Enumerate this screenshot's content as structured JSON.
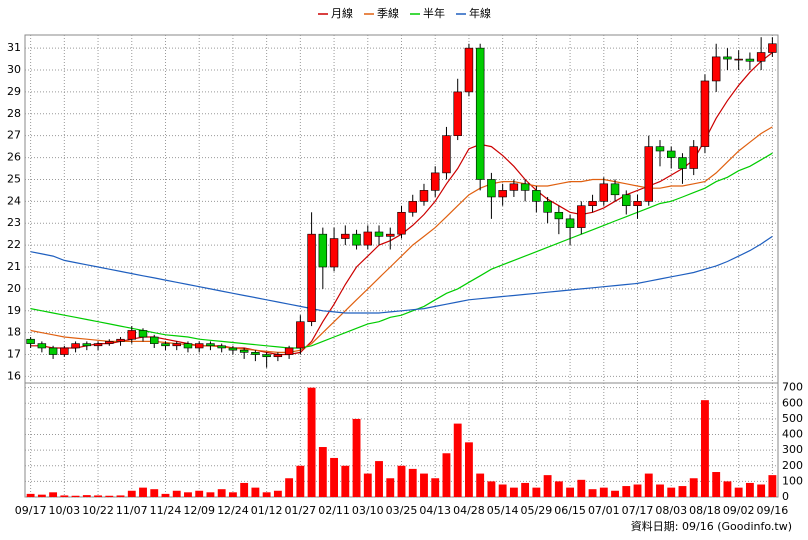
{
  "chart_data": {
    "type": "candlestick",
    "categories": [
      "09/17",
      null,
      null,
      "10/03",
      null,
      null,
      "10/22",
      null,
      null,
      "11/07",
      null,
      null,
      "11/24",
      null,
      null,
      "12/09",
      null,
      null,
      "12/24",
      null,
      null,
      "01/12",
      null,
      null,
      "01/27",
      null,
      null,
      "02/11",
      null,
      null,
      "03/10",
      null,
      null,
      "03/25",
      null,
      null,
      "04/13",
      null,
      null,
      "04/28",
      null,
      null,
      "05/14",
      null,
      null,
      "05/29",
      null,
      null,
      "06/15",
      null,
      null,
      "07/01",
      null,
      null,
      "07/17",
      null,
      null,
      "08/03",
      null,
      null,
      "08/18",
      null,
      null,
      "09/02",
      null,
      null,
      "09/16"
    ],
    "open": [
      17.7,
      17.5,
      17.3,
      17.0,
      17.3,
      17.5,
      17.4,
      17.5,
      17.6,
      17.7,
      18.1,
      17.8,
      17.5,
      17.4,
      17.5,
      17.3,
      17.5,
      17.4,
      17.3,
      17.2,
      17.1,
      17.0,
      16.9,
      17.0,
      17.3,
      18.5,
      22.5,
      21.0,
      22.3,
      22.5,
      22.0,
      22.6,
      22.4,
      22.5,
      23.5,
      24.0,
      24.5,
      25.3,
      27.0,
      29.0,
      31.0,
      25.0,
      24.2,
      24.5,
      24.8,
      24.5,
      24.0,
      23.5,
      23.2,
      22.8,
      23.8,
      24.0,
      24.8,
      24.3,
      23.8,
      24.0,
      26.5,
      26.3,
      26.0,
      25.5,
      26.5,
      29.5,
      30.6,
      30.5,
      30.5,
      30.4,
      30.8
    ],
    "high": [
      17.8,
      17.6,
      17.4,
      17.4,
      17.6,
      17.6,
      17.6,
      17.7,
      17.8,
      18.3,
      18.2,
      17.9,
      17.6,
      17.6,
      17.6,
      17.6,
      17.6,
      17.5,
      17.4,
      17.3,
      17.2,
      17.1,
      17.1,
      17.4,
      18.8,
      23.5,
      22.8,
      22.8,
      22.9,
      22.7,
      22.9,
      22.9,
      22.8,
      23.8,
      24.3,
      24.8,
      25.6,
      27.4,
      29.6,
      31.2,
      31.2,
      25.3,
      24.8,
      25.0,
      25.0,
      24.7,
      24.2,
      23.8,
      23.4,
      24.0,
      24.3,
      25.1,
      25.0,
      24.5,
      24.3,
      27.0,
      26.8,
      26.5,
      26.2,
      26.8,
      29.8,
      31.2,
      31.0,
      30.9,
      30.8,
      31.5,
      31.5
    ],
    "low": [
      17.3,
      17.1,
      16.8,
      16.9,
      17.1,
      17.2,
      17.2,
      17.4,
      17.4,
      17.5,
      17.6,
      17.3,
      17.2,
      17.2,
      17.1,
      17.1,
      17.2,
      17.1,
      17.0,
      16.8,
      16.7,
      16.4,
      16.7,
      16.8,
      17.0,
      18.3,
      20.0,
      20.8,
      22.0,
      21.8,
      21.8,
      22.0,
      21.8,
      22.3,
      23.3,
      23.8,
      24.2,
      25.0,
      26.8,
      28.8,
      24.5,
      23.2,
      23.8,
      24.2,
      24.0,
      23.5,
      23.0,
      22.5,
      22.0,
      22.5,
      23.5,
      23.8,
      24.0,
      23.4,
      23.2,
      23.8,
      25.6,
      25.5,
      24.8,
      25.2,
      26.2,
      29.0,
      30.0,
      30.0,
      30.0,
      30.0,
      30.6
    ],
    "close": [
      17.5,
      17.3,
      17.0,
      17.3,
      17.5,
      17.4,
      17.5,
      17.6,
      17.7,
      18.1,
      17.8,
      17.5,
      17.4,
      17.5,
      17.3,
      17.5,
      17.4,
      17.3,
      17.2,
      17.1,
      17.0,
      16.9,
      17.0,
      17.3,
      18.5,
      22.5,
      21.0,
      22.3,
      22.5,
      22.0,
      22.6,
      22.4,
      22.5,
      23.5,
      24.0,
      24.5,
      25.3,
      27.0,
      29.0,
      31.0,
      25.0,
      24.2,
      24.5,
      24.8,
      24.5,
      24.0,
      23.5,
      23.2,
      22.8,
      23.8,
      24.0,
      24.8,
      24.3,
      23.8,
      24.0,
      26.5,
      26.3,
      26.0,
      25.5,
      26.5,
      29.5,
      30.6,
      30.5,
      30.5,
      30.4,
      30.8,
      31.2
    ],
    "up_color": "#ff0000",
    "down_color": "#00cc00",
    "ylim": [
      15.7,
      31.6
    ],
    "yticks": [
      16,
      17,
      18,
      19,
      20,
      21,
      22,
      23,
      24,
      25,
      26,
      27,
      28,
      29,
      30,
      31
    ],
    "grid": true,
    "series": [
      {
        "name": "月線",
        "color": "#cc0000",
        "values": [
          17.4,
          17.4,
          17.3,
          17.3,
          17.3,
          17.4,
          17.5,
          17.5,
          17.6,
          17.7,
          17.8,
          17.8,
          17.7,
          17.6,
          17.5,
          17.4,
          17.4,
          17.4,
          17.3,
          17.3,
          17.2,
          17.1,
          17.0,
          17.0,
          17.1,
          17.6,
          18.5,
          19.3,
          20.2,
          21.0,
          21.5,
          22.0,
          22.2,
          22.5,
          22.9,
          23.4,
          24.0,
          24.8,
          25.5,
          26.4,
          26.6,
          26.5,
          26.1,
          25.6,
          25.0,
          24.5,
          24.1,
          23.8,
          23.5,
          23.4,
          23.5,
          23.7,
          24.0,
          24.3,
          24.5,
          24.7,
          24.9,
          25.2,
          25.5,
          25.9,
          26.8,
          27.8,
          28.6,
          29.3,
          29.9,
          30.4,
          30.8
        ]
      },
      {
        "name": "季線",
        "color": "#e06010",
        "values": [
          18.1,
          18.0,
          17.9,
          17.8,
          17.75,
          17.7,
          17.65,
          17.6,
          17.6,
          17.6,
          17.6,
          17.6,
          17.55,
          17.5,
          17.45,
          17.4,
          17.4,
          17.35,
          17.3,
          17.25,
          17.2,
          17.15,
          17.1,
          17.1,
          17.2,
          17.5,
          18.0,
          18.5,
          19.0,
          19.5,
          20.0,
          20.5,
          21.0,
          21.5,
          22.0,
          22.4,
          22.8,
          23.3,
          23.8,
          24.3,
          24.6,
          24.8,
          24.9,
          24.9,
          24.8,
          24.7,
          24.7,
          24.8,
          24.9,
          24.9,
          25.0,
          25.0,
          24.9,
          24.8,
          24.7,
          24.6,
          24.6,
          24.7,
          24.7,
          24.8,
          24.9,
          25.3,
          25.8,
          26.3,
          26.7,
          27.1,
          27.4
        ]
      },
      {
        "name": "半年",
        "color": "#00cc00",
        "values": [
          19.1,
          19.0,
          18.9,
          18.8,
          18.7,
          18.6,
          18.5,
          18.4,
          18.3,
          18.2,
          18.1,
          18.0,
          17.9,
          17.85,
          17.8,
          17.7,
          17.65,
          17.6,
          17.55,
          17.5,
          17.45,
          17.4,
          17.35,
          17.3,
          17.3,
          17.4,
          17.6,
          17.8,
          18.0,
          18.2,
          18.4,
          18.5,
          18.7,
          18.8,
          19.0,
          19.2,
          19.5,
          19.8,
          20.0,
          20.3,
          20.6,
          20.9,
          21.1,
          21.3,
          21.5,
          21.7,
          21.9,
          22.1,
          22.3,
          22.5,
          22.7,
          22.9,
          23.1,
          23.3,
          23.5,
          23.7,
          23.9,
          24.0,
          24.2,
          24.4,
          24.6,
          24.9,
          25.1,
          25.4,
          25.6,
          25.9,
          26.2
        ]
      },
      {
        "name": "年線",
        "color": "#1f5fbf",
        "values": [
          21.7,
          21.6,
          21.5,
          21.3,
          21.2,
          21.1,
          21.0,
          20.9,
          20.8,
          20.7,
          20.6,
          20.5,
          20.4,
          20.3,
          20.2,
          20.1,
          20.0,
          19.9,
          19.8,
          19.7,
          19.6,
          19.5,
          19.4,
          19.3,
          19.2,
          19.1,
          19.0,
          18.95,
          18.9,
          18.9,
          18.9,
          18.9,
          18.95,
          19.0,
          19.05,
          19.1,
          19.2,
          19.3,
          19.4,
          19.5,
          19.55,
          19.6,
          19.65,
          19.7,
          19.75,
          19.8,
          19.85,
          19.9,
          19.95,
          20.0,
          20.05,
          20.1,
          20.15,
          20.2,
          20.25,
          20.35,
          20.45,
          20.55,
          20.65,
          20.75,
          20.9,
          21.05,
          21.25,
          21.5,
          21.75,
          22.05,
          22.4
        ]
      }
    ],
    "volume": {
      "color": "#ff0000",
      "ylim": [
        0,
        730
      ],
      "yticks": [
        0,
        100,
        200,
        300,
        400,
        500,
        600,
        700
      ],
      "values": [
        20,
        15,
        30,
        10,
        8,
        12,
        10,
        8,
        10,
        40,
        60,
        50,
        20,
        40,
        30,
        40,
        30,
        50,
        30,
        90,
        60,
        30,
        40,
        120,
        200,
        700,
        320,
        250,
        200,
        500,
        150,
        230,
        120,
        200,
        180,
        150,
        120,
        280,
        470,
        350,
        150,
        100,
        80,
        60,
        90,
        60,
        140,
        100,
        60,
        110,
        50,
        60,
        40,
        70,
        80,
        150,
        80,
        60,
        70,
        120,
        620,
        160,
        100,
        60,
        90,
        80,
        140
      ]
    },
    "note": "資料日期: 09/16 (Goodinfo.tw)"
  }
}
